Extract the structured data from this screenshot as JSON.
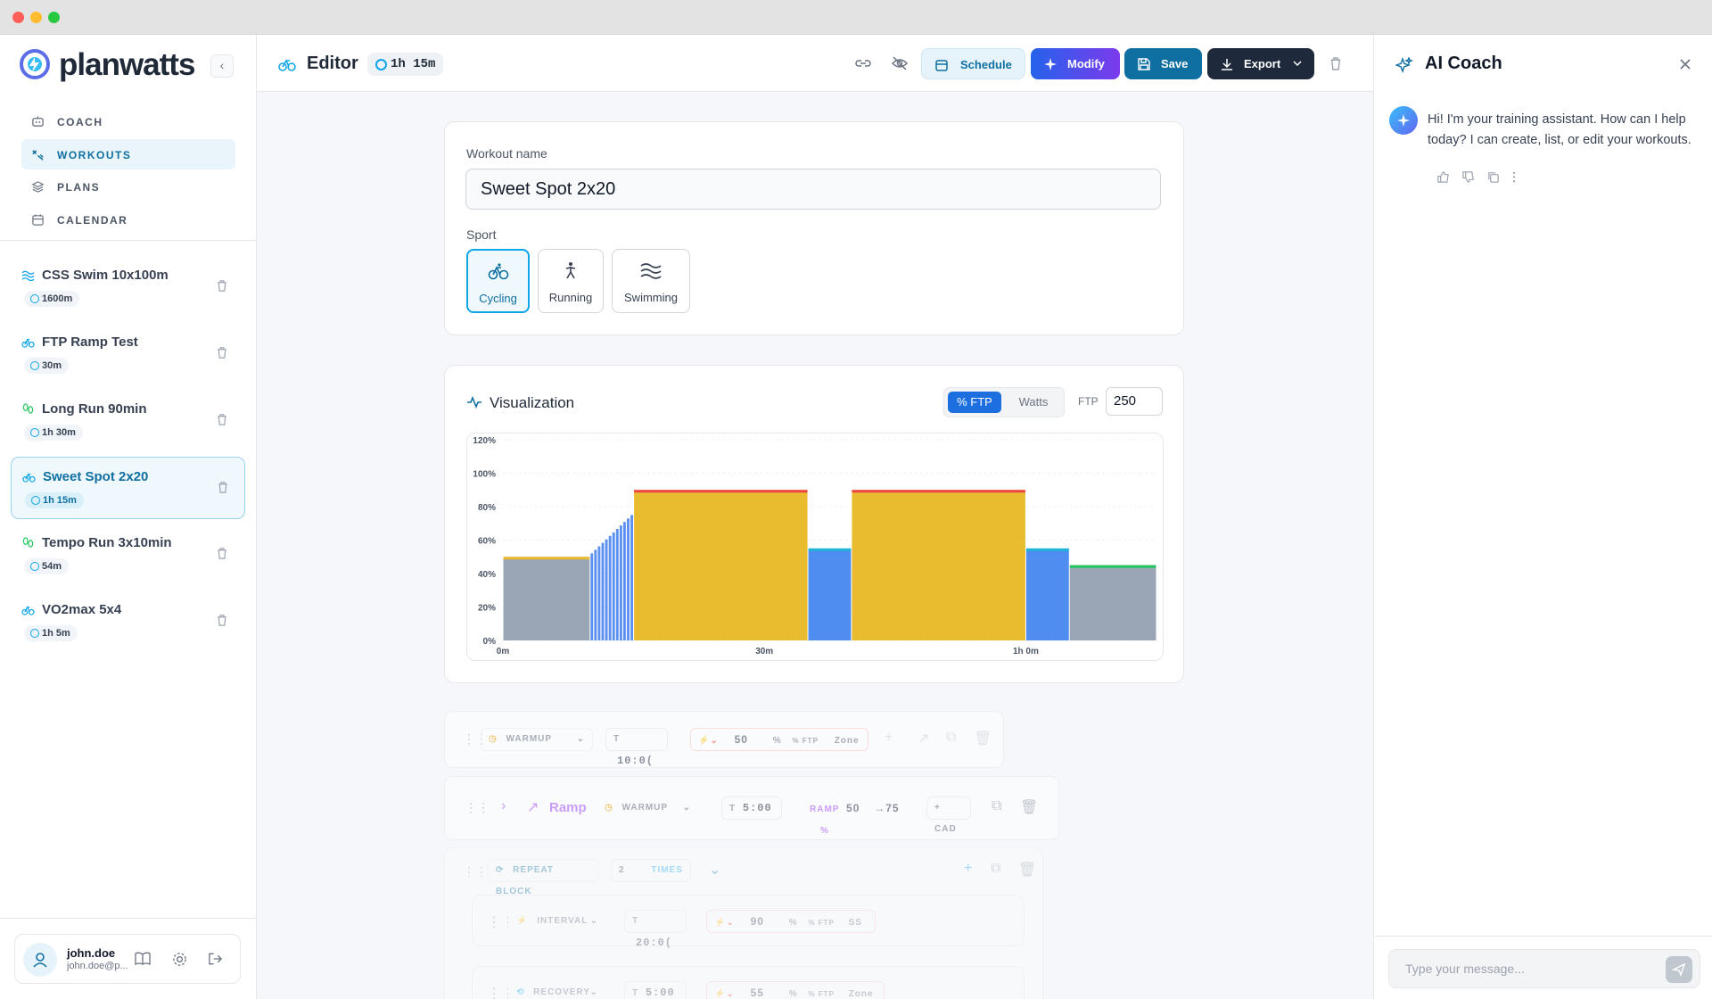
{
  "app": {
    "name": "planwatts"
  },
  "nav": [
    {
      "label": "COACH",
      "icon": "bot-icon"
    },
    {
      "label": "WORKOUTS",
      "icon": "workout-icon"
    },
    {
      "label": "PLANS",
      "icon": "layers-icon"
    },
    {
      "label": "CALENDAR",
      "icon": "calendar-icon"
    }
  ],
  "workouts": [
    {
      "name": "CSS Swim 10x100m",
      "badge": "1600m",
      "sport": "swimming"
    },
    {
      "name": "FTP Ramp Test",
      "badge": "30m",
      "sport": "cycling"
    },
    {
      "name": "Long Run 90min",
      "badge": "1h 30m",
      "sport": "running"
    },
    {
      "name": "Sweet Spot 2x20",
      "badge": "1h 15m",
      "sport": "cycling"
    },
    {
      "name": "Tempo Run 3x10min",
      "badge": "54m",
      "sport": "running"
    },
    {
      "name": "VO2max 5x4",
      "badge": "1h 5m",
      "sport": "cycling"
    }
  ],
  "user": {
    "name": "john.doe",
    "email": "john.doe@p..."
  },
  "header": {
    "title": "Editor",
    "duration": "1h 15m",
    "schedule": "Schedule",
    "modify": "Modify",
    "save": "Save",
    "export": "Export"
  },
  "editor": {
    "name_label": "Workout name",
    "name_value": "Sweet Spot 2x20",
    "sport_label": "Sport",
    "sports": [
      "Cycling",
      "Running",
      "Swimming"
    ],
    "selected_sport": "Cycling"
  },
  "viz": {
    "title": "Visualization",
    "mode_ftp": "% FTP",
    "mode_watts": "Watts",
    "ftp_label": "FTP",
    "ftp_value": "250"
  },
  "chart_data": {
    "type": "bar",
    "x_unit": "minutes",
    "xlim": [
      0,
      75
    ],
    "ylim": [
      0,
      120
    ],
    "y_ticks": [
      "0%",
      "20%",
      "40%",
      "60%",
      "80%",
      "100%",
      "120%"
    ],
    "x_ticks": [
      {
        "label": "0m",
        "x": 0
      },
      {
        "label": "30m",
        "x": 30
      },
      {
        "label": "1h 0m",
        "x": 60
      }
    ],
    "segments": [
      {
        "start": 0,
        "duration": 10,
        "value": 50,
        "kind": "warmup"
      },
      {
        "start": 10,
        "duration": 5,
        "from": 50,
        "to": 75,
        "kind": "ramp"
      },
      {
        "start": 15,
        "duration": 20,
        "value": 90,
        "kind": "interval"
      },
      {
        "start": 35,
        "duration": 5,
        "value": 55,
        "kind": "recovery"
      },
      {
        "start": 40,
        "duration": 20,
        "value": 90,
        "kind": "interval"
      },
      {
        "start": 60,
        "duration": 5,
        "value": 55,
        "kind": "recovery"
      },
      {
        "start": 65,
        "duration": 10,
        "value": 45,
        "kind": "cooldown"
      }
    ],
    "colors": {
      "warmup": "#9aa6b6",
      "ramp": "#5b8ff0",
      "interval": "#e9bb2e",
      "recovery": "#4f8ef0",
      "cooldown": "#9aa6b6"
    },
    "top_colors": {
      "warmup": "#e9bb2e",
      "interval": "#ef4444",
      "recovery": "#1fb5d8",
      "cooldown": "#22c55e"
    }
  },
  "steps": {
    "warmup": {
      "type": "WARMUP",
      "time_label": "T",
      "time": "10:0(",
      "power": "50",
      "unit": "%",
      "unit2": "% FTP",
      "zone": "Zone"
    },
    "ramp": {
      "title": "Ramp",
      "type": "WARMUP",
      "time_label": "T",
      "time": "5:00",
      "ramp_label": "RAMP",
      "from": "50",
      "to": "→75",
      "unit": "%",
      "cad": "+ CAD"
    },
    "repeat": {
      "label": "REPEAT BLOCK",
      "count": "2",
      "times": "TIMES"
    },
    "interval": {
      "type": "INTERVAL",
      "time_label": "T",
      "time": "20:0(",
      "power": "90",
      "unit": "%",
      "unit2": "% FTP",
      "zone": "SS"
    },
    "recovery": {
      "type": "RECOVERY",
      "time_label": "T",
      "time": "5:00",
      "power": "55",
      "unit": "%",
      "unit2": "% FTP",
      "zone": "Zone"
    }
  },
  "ai": {
    "title": "AI Coach",
    "message": "Hi! I'm your training assistant. How can I help today? I can create, list, or edit your workouts.",
    "placeholder": "Type your message..."
  }
}
